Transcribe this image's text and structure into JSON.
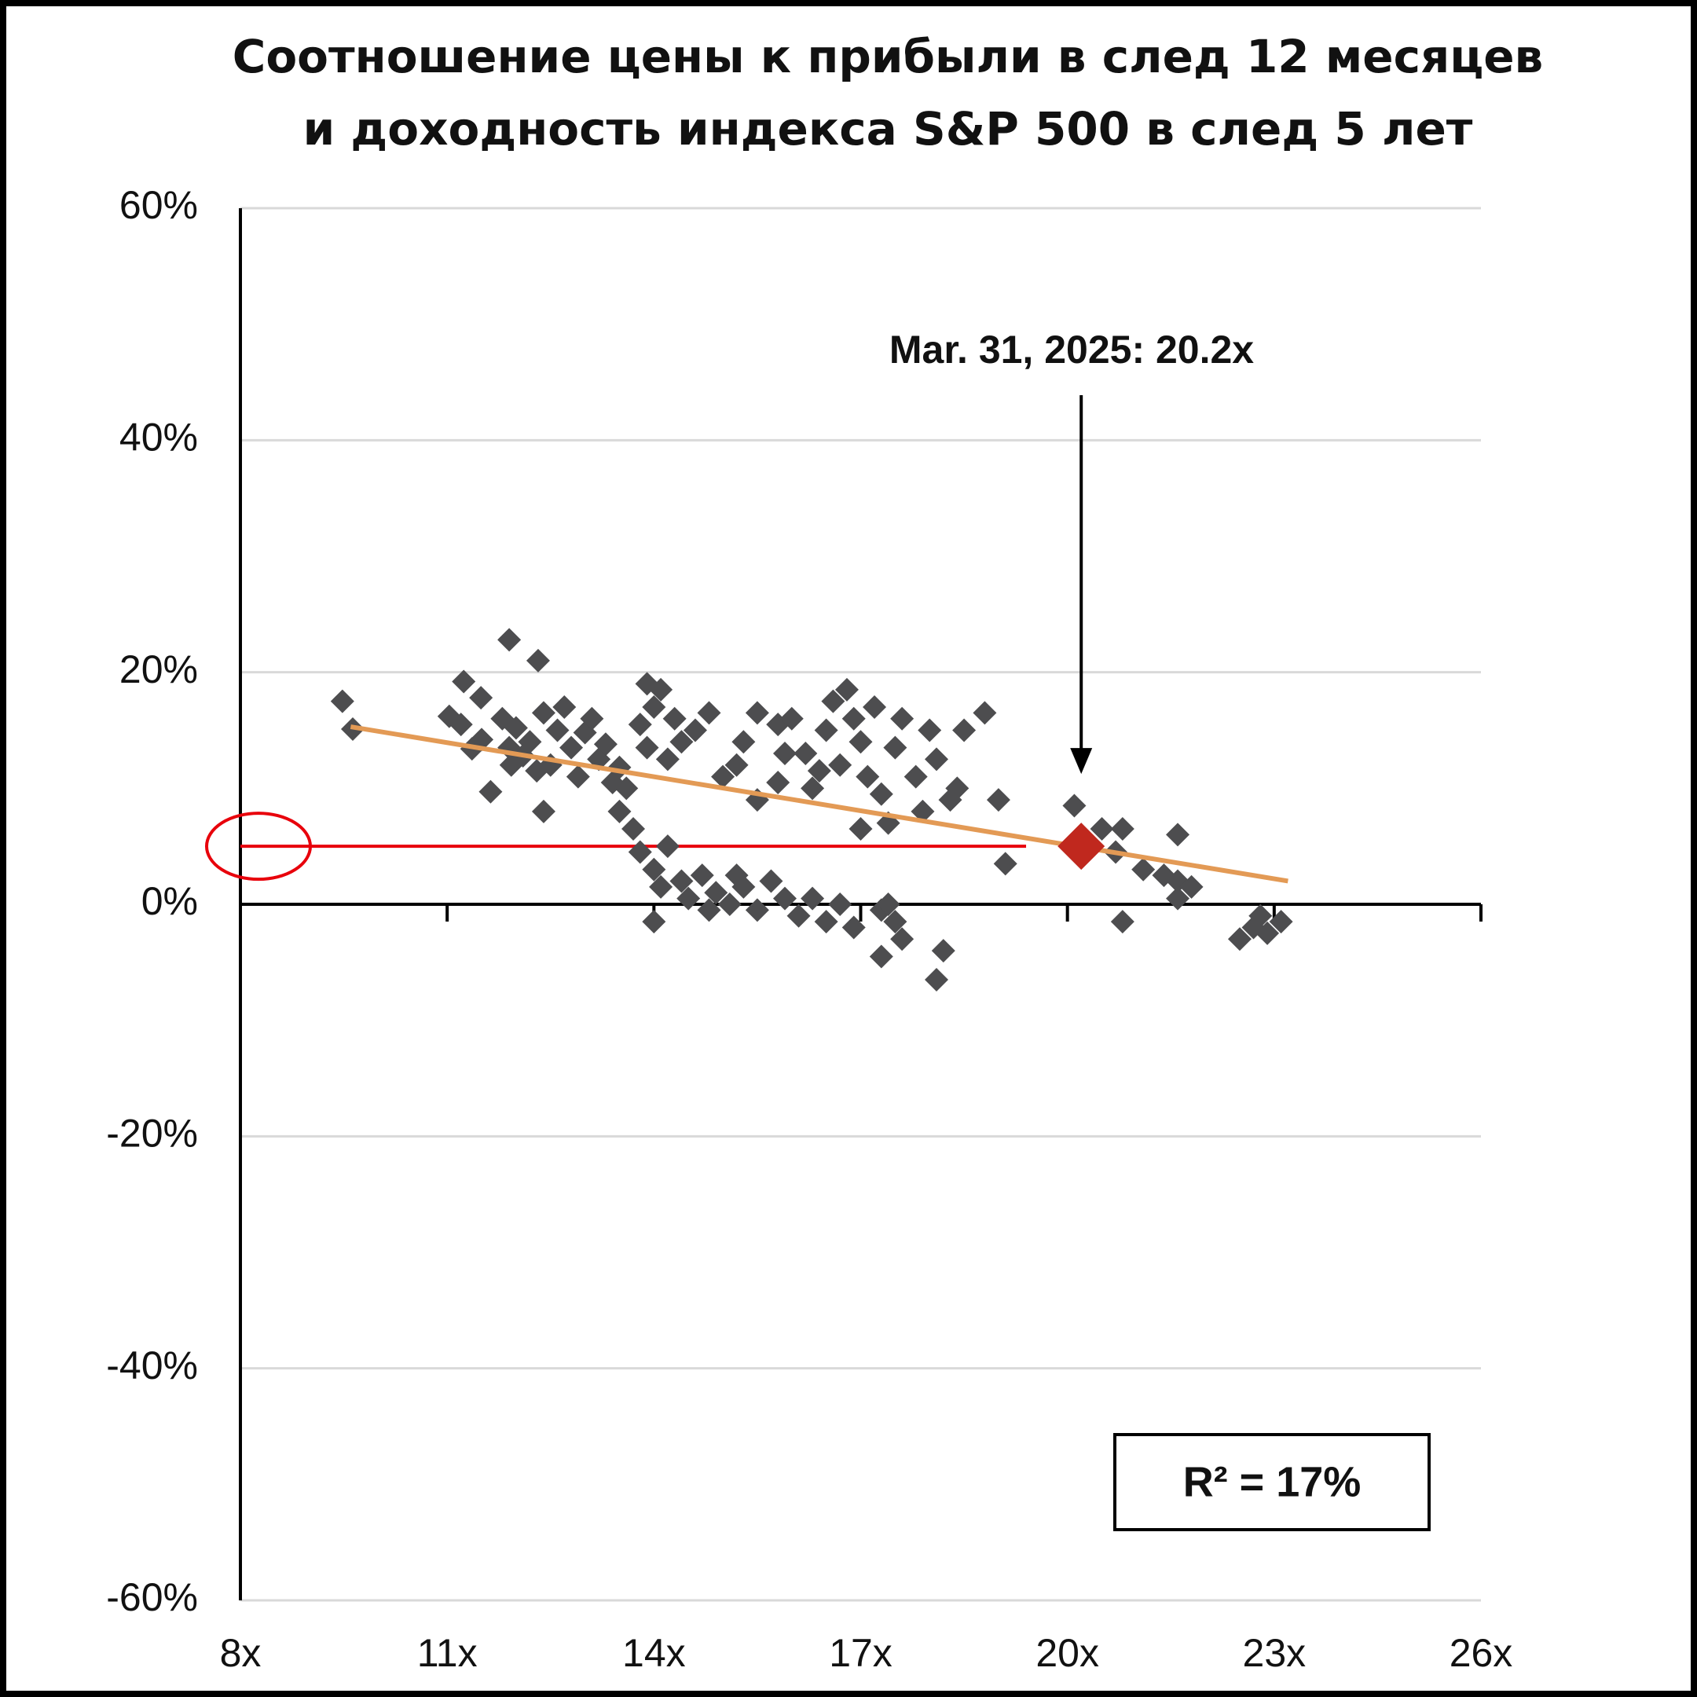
{
  "chart_data": {
    "type": "scatter",
    "title": [
      "Соотношение цены к прибыли в след 12 месяцев",
      "и доходность индекса S&P 500 в след 5 лет"
    ],
    "xlim": [
      8,
      26
    ],
    "xticks": [
      {
        "value": 8,
        "label": "8x"
      },
      {
        "value": 11,
        "label": "11x"
      },
      {
        "value": 14,
        "label": "14x"
      },
      {
        "value": 17,
        "label": "17x"
      },
      {
        "value": 20,
        "label": "20x"
      },
      {
        "value": 23,
        "label": "23x"
      },
      {
        "value": 26,
        "label": "26x"
      }
    ],
    "ylim": [
      -60,
      60
    ],
    "yticks": [
      {
        "value": -60,
        "label": "-60%"
      },
      {
        "value": -40,
        "label": "-40%"
      },
      {
        "value": -20,
        "label": "-20%"
      },
      {
        "value": 0,
        "label": "0%"
      },
      {
        "value": 20,
        "label": "20%"
      },
      {
        "value": 40,
        "label": "40%"
      },
      {
        "value": 60,
        "label": "60%"
      }
    ],
    "grid": true,
    "series": [
      {
        "color": "#4d4d4f",
        "x": [
          9.48,
          9.63,
          11.03,
          11.24,
          11.49,
          11.9,
          12.32,
          11.63,
          12.4,
          11.93,
          11.36,
          11.2,
          11.5,
          11.8,
          12.0,
          12.2,
          12.4,
          12.6,
          12.8,
          12.5,
          12.9,
          13.2,
          13.4,
          13.0,
          12.1,
          11.9,
          12.7,
          13.1,
          13.3,
          12.3,
          13.5,
          13.9,
          14.1,
          14.0,
          13.8,
          14.3,
          14.6,
          14.8,
          14.4,
          13.9,
          14.2,
          13.6,
          13.5,
          13.7,
          15.0,
          15.3,
          15.5,
          15.8,
          15.9,
          15.2,
          15.5,
          15.8,
          16.0,
          16.2,
          16.4,
          16.5,
          16.6,
          16.8,
          16.9,
          17.0,
          17.2,
          16.7,
          16.3,
          17.1,
          17.3,
          17.5,
          17.6,
          17.4,
          17.0,
          17.8,
          18.0,
          18.1,
          18.3,
          17.9,
          18.5,
          18.8,
          19.0,
          18.4,
          13.8,
          14.0,
          14.2,
          14.1,
          14.4,
          14.0,
          14.5,
          14.7,
          14.9,
          15.1,
          15.3,
          15.5,
          15.7,
          15.9,
          16.1,
          16.3,
          16.5,
          16.7,
          16.9,
          15.2,
          14.8,
          17.3,
          17.5,
          17.4,
          17.6,
          17.3,
          18.2,
          18.1,
          19.1,
          20.1,
          20.5,
          20.8,
          20.7,
          20.8,
          21.1,
          21.4,
          21.6,
          21.6,
          21.8,
          21.6,
          22.5,
          22.7,
          22.9,
          23.1,
          22.8
        ],
        "y": [
          17.5,
          15.1,
          16.2,
          19.2,
          17.8,
          22.8,
          21.0,
          9.7,
          8.0,
          12.0,
          13.4,
          15.5,
          14.2,
          16.0,
          15.2,
          14.0,
          16.5,
          15.0,
          13.5,
          12.0,
          11.0,
          12.5,
          10.5,
          14.8,
          12.8,
          13.5,
          17.0,
          16.0,
          13.8,
          11.5,
          11.8,
          19.0,
          18.5,
          17.0,
          15.5,
          16.0,
          15.0,
          16.5,
          14.0,
          13.5,
          12.5,
          10.0,
          8.0,
          6.5,
          11.0,
          14.0,
          16.5,
          15.5,
          13.0,
          12.0,
          9.0,
          10.5,
          16.0,
          13.0,
          11.5,
          15.0,
          17.5,
          18.5,
          16.0,
          14.0,
          17.0,
          12.0,
          10.0,
          11.0,
          9.5,
          13.5,
          16.0,
          7.0,
          6.5,
          11.0,
          15.0,
          12.5,
          9.0,
          8.0,
          15.0,
          16.5,
          9.0,
          10.0,
          4.5,
          3.0,
          5.0,
          1.5,
          2.0,
          -1.5,
          0.5,
          2.5,
          1.0,
          0.0,
          1.5,
          -0.5,
          2.0,
          0.5,
          -1.0,
          0.5,
          -1.5,
          0.0,
          -2.0,
          2.5,
          -0.5,
          -0.5,
          -1.5,
          0.0,
          -3.0,
          -4.5,
          -4.0,
          -6.5,
          3.5,
          8.5,
          6.5,
          6.5,
          4.5,
          -1.5,
          3.0,
          2.5,
          2.0,
          0.5,
          1.5,
          6.0,
          -3.0,
          -2.0,
          -2.5,
          -1.5,
          -1.0
        ]
      },
      {
        "color": "#c0281e",
        "x": [
          20.2
        ],
        "y": [
          5
        ]
      }
    ],
    "trendline": {
      "color": "#e39a55",
      "x": [
        9.6,
        23.2
      ],
      "y": [
        15.3,
        2.0
      ]
    },
    "reference_line": {
      "color": "#e8000b",
      "x": [
        8,
        19.4
      ],
      "y": [
        5,
        5
      ]
    },
    "annotation": "Mar. 31, 2025:  20.2x",
    "r_squared_label": "R²  = 17%"
  }
}
